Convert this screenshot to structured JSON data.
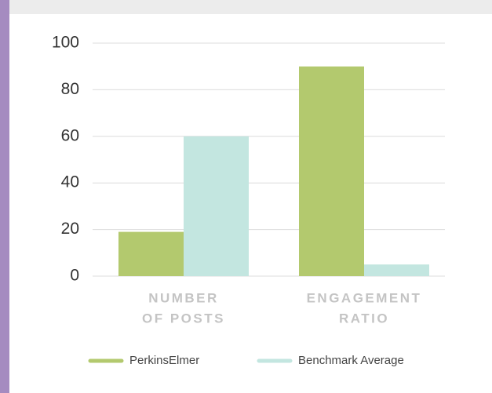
{
  "chart_data": {
    "type": "bar",
    "categories": [
      [
        "NUMBER",
        "OF POSTS"
      ],
      [
        "ENGAGEMENT",
        "RATIO"
      ]
    ],
    "series": [
      {
        "name": "PerkinsElmer",
        "color": "#b3c96e",
        "values": [
          19,
          90
        ]
      },
      {
        "name": "Benchmark Average",
        "color": "#c3e6e0",
        "values": [
          60,
          5
        ]
      }
    ],
    "ylim": [
      0,
      100
    ],
    "yticks": [
      0,
      20,
      40,
      60,
      80,
      100
    ],
    "grid": true,
    "legend": "bottom"
  }
}
